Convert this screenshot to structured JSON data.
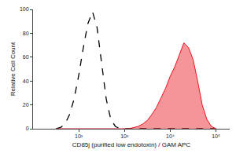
{
  "chart_data": {
    "type": "line",
    "x_label": "CD85j (purified low endotoxin) / GAM APC",
    "y_label": "Relative Cell Count",
    "log": "x",
    "x": [
      32,
      40,
      50,
      63,
      79,
      100,
      126,
      158,
      200,
      251,
      316,
      398,
      501,
      631,
      794,
      1000,
      1259,
      1585,
      1995,
      2512,
      3162,
      3981,
      5012,
      6310,
      7943,
      10000,
      12589,
      15849,
      19953,
      25119,
      31623,
      39811,
      50119,
      63096,
      79433,
      100000
    ],
    "series": [
      {
        "type": "line",
        "color": "#000000",
        "line_style": "dashed",
        "values": [
          0,
          1,
          4,
          12,
          25,
          45,
          68,
          88,
          98,
          85,
          55,
          25,
          8,
          2,
          0,
          0,
          0,
          0,
          0,
          0,
          0,
          0,
          0,
          0,
          0,
          0,
          0,
          0,
          0,
          0,
          0,
          0,
          0,
          0,
          0,
          0
        ]
      },
      {
        "type": "area",
        "color": "#e8141c",
        "line_style": "solid",
        "values": [
          0,
          0,
          0,
          0,
          0,
          0,
          0,
          0,
          0,
          0,
          0,
          0,
          0,
          0,
          0,
          0,
          0,
          1,
          2,
          4,
          7,
          12,
          18,
          26,
          34,
          44,
          52,
          62,
          72,
          68,
          58,
          40,
          20,
          8,
          2,
          0
        ]
      }
    ],
    "xlim": [
      10,
      200000
    ],
    "xticks": [
      {
        "value": 100,
        "label": "10²"
      },
      {
        "value": 1000,
        "label": "10³"
      },
      {
        "value": 10000,
        "label": "10⁴"
      },
      {
        "value": 100000,
        "label": "10⁵"
      }
    ],
    "ylim": [
      0,
      100
    ],
    "yticks": [
      0,
      20,
      40,
      60,
      80,
      100
    ],
    "grid": false
  }
}
